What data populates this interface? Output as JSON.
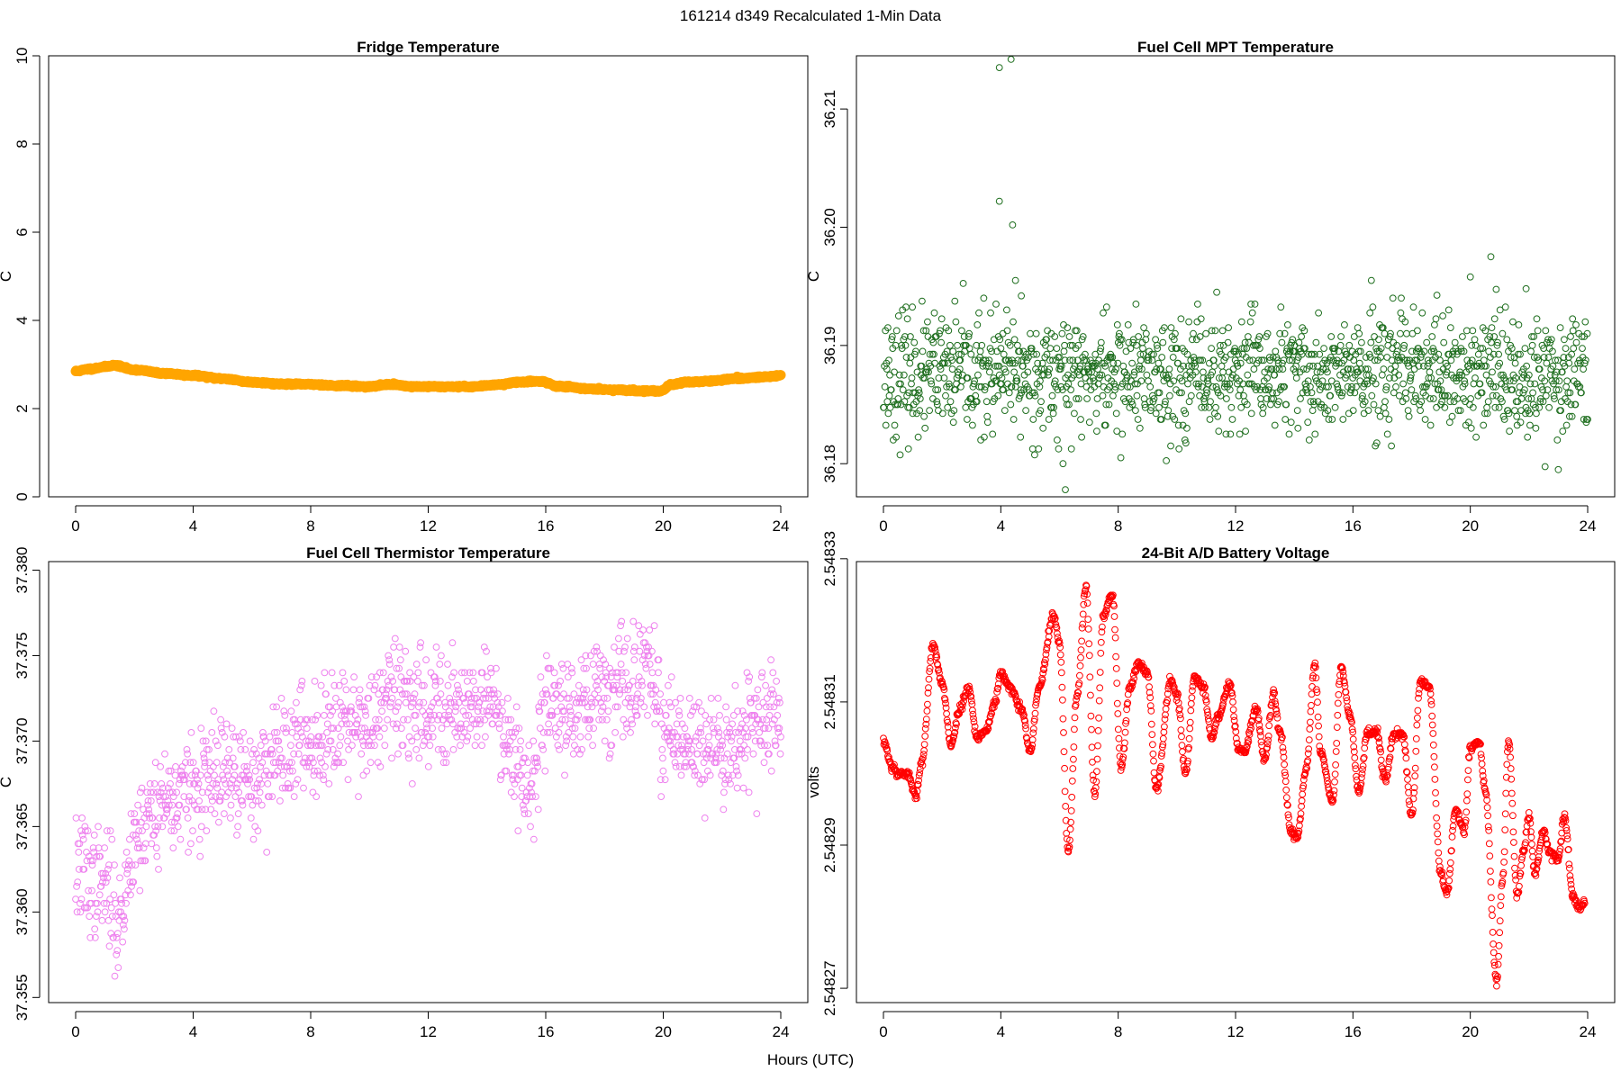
{
  "suptitle": "161214   d349   Recalculated 1-Min Data",
  "xlabel_shared": "Hours (UTC)",
  "chart_data": [
    {
      "type": "line",
      "title": "Fridge Temperature",
      "xlabel": "Hours (UTC)",
      "ylabel": "C",
      "color": "#FFA500",
      "xlim": [
        0,
        24
      ],
      "ylim": [
        0,
        10
      ],
      "x_ticks": [
        0,
        4,
        8,
        12,
        16,
        20,
        24
      ],
      "y_ticks": [
        0,
        2,
        4,
        6,
        8,
        10
      ],
      "y_tick_labels": [
        "0",
        "2",
        "4",
        "6",
        "8",
        "10"
      ],
      "series": [
        {
          "name": "Fridge Temperature",
          "x": [
            0,
            0.5,
            1.0,
            1.3,
            2.0,
            3.0,
            4.0,
            5.0,
            6.0,
            7.0,
            8.0,
            9.0,
            10.0,
            10.7,
            11.5,
            12.5,
            13.5,
            14.5,
            15.0,
            15.8,
            16.5,
            17.5,
            18.5,
            19.5,
            19.9,
            20.3,
            20.8,
            21.5,
            22.5,
            23.5,
            24.0
          ],
          "y": [
            2.85,
            2.9,
            2.95,
            2.98,
            2.88,
            2.8,
            2.75,
            2.68,
            2.6,
            2.56,
            2.55,
            2.52,
            2.5,
            2.55,
            2.5,
            2.5,
            2.5,
            2.55,
            2.6,
            2.62,
            2.5,
            2.45,
            2.42,
            2.4,
            2.4,
            2.55,
            2.6,
            2.62,
            2.68,
            2.72,
            2.75
          ]
        }
      ]
    },
    {
      "type": "scatter",
      "title": "Fuel Cell MPT Temperature",
      "xlabel": "Hours (UTC)",
      "ylabel": "C",
      "color": "#1E6E1E",
      "xlim": [
        0,
        24
      ],
      "ylim": [
        36.1772,
        36.2145
      ],
      "x_ticks": [
        0,
        4,
        8,
        12,
        16,
        20,
        24
      ],
      "y_ticks": [
        36.18,
        36.19,
        36.2,
        36.21
      ],
      "y_tick_labels": [
        "36.18",
        "36.19",
        "36.20",
        "36.21"
      ],
      "baseline": 36.1875,
      "spread": 0.0025,
      "outliers": [
        {
          "x": 3.95,
          "y": 36.2135
        },
        {
          "x": 4.35,
          "y": 36.2142
        },
        {
          "x": 3.95,
          "y": 36.2022
        },
        {
          "x": 4.4,
          "y": 36.2002
        },
        {
          "x": 4.5,
          "y": 36.1955
        },
        {
          "x": 4.7,
          "y": 36.1942
        },
        {
          "x": 6.2,
          "y": 36.1778
        },
        {
          "x": 20.0,
          "y": 36.1958
        },
        {
          "x": 20.7,
          "y": 36.1975
        },
        {
          "x": 21.9,
          "y": 36.1948
        }
      ]
    },
    {
      "type": "scatter",
      "title": "Fuel Cell Thermistor Temperature",
      "xlabel": "Hours (UTC)",
      "ylabel": "C",
      "color": "#EE82EE",
      "xlim": [
        0,
        24
      ],
      "ylim": [
        37.3547,
        37.3805
      ],
      "x_ticks": [
        0,
        4,
        8,
        12,
        16,
        20,
        24
      ],
      "y_ticks": [
        37.355,
        37.36,
        37.365,
        37.37,
        37.375,
        37.38
      ],
      "y_tick_labels": [
        "37.355",
        "37.360",
        "37.365",
        "37.370",
        "37.375",
        "37.380"
      ],
      "trend": {
        "x": [
          0,
          1,
          1.5,
          2,
          3,
          4,
          5,
          6,
          7,
          8,
          9,
          10,
          11,
          12,
          13,
          14,
          15,
          15.5,
          16,
          17,
          18,
          19,
          19.5,
          20,
          21,
          22,
          23,
          24
        ],
        "y": [
          37.3625,
          37.3615,
          37.3595,
          37.3645,
          37.3665,
          37.367,
          37.368,
          37.3675,
          37.3695,
          37.37,
          37.3715,
          37.371,
          37.3725,
          37.372,
          37.372,
          37.3725,
          37.3695,
          37.367,
          37.372,
          37.372,
          37.373,
          37.373,
          37.3745,
          37.3705,
          37.3695,
          37.3695,
          37.371,
          37.371
        ]
      },
      "spread": 0.0016
    },
    {
      "type": "line",
      "title": "24-Bit A/D Battery Voltage",
      "xlabel": "Hours (UTC)",
      "ylabel": "volts",
      "color": "#FF0000",
      "xlim": [
        0,
        24
      ],
      "ylim": [
        2.548268,
        2.5483296
      ],
      "x_ticks": [
        0,
        4,
        8,
        12,
        16,
        20,
        24
      ],
      "y_ticks": [
        2.54827,
        2.54829,
        2.54831,
        2.54833
      ],
      "y_tick_labels": [
        "2.54827",
        "2.54829",
        "2.54831",
        "2.54833"
      ],
      "marker": "circle",
      "series": [
        {
          "name": "Battery Voltage",
          "x": [
            0,
            0.3,
            0.5,
            0.8,
            1.1,
            1.3,
            1.7,
            2.0,
            2.3,
            2.6,
            2.9,
            3.2,
            3.5,
            3.8,
            4.0,
            4.3,
            4.7,
            5.0,
            5.3,
            5.8,
            6.0,
            6.3,
            6.6,
            6.9,
            7.2,
            7.5,
            7.8,
            8.1,
            8.4,
            8.7,
            9.0,
            9.3,
            9.8,
            10.0,
            10.3,
            10.6,
            10.9,
            11.2,
            11.4,
            11.8,
            12.1,
            12.3,
            12.7,
            13.0,
            13.3,
            13.5,
            13.9,
            14.1,
            14.4,
            14.7,
            14.9,
            15.3,
            15.6,
            15.9,
            16.2,
            16.5,
            16.8,
            17.1,
            17.4,
            17.7,
            18.0,
            18.3,
            18.6,
            19.0,
            19.2,
            19.5,
            19.8,
            20.0,
            20.3,
            20.5,
            20.9,
            21.1,
            21.3,
            21.6,
            21.8,
            22.0,
            22.2,
            22.5,
            22.7,
            23.0,
            23.2,
            23.5,
            23.7,
            23.9
          ],
          "y": [
            2.5483045,
            2.548301,
            2.5483,
            2.5483,
            2.548297,
            2.5483015,
            2.548318,
            2.5483125,
            2.548304,
            2.548309,
            2.548312,
            2.548305,
            2.548306,
            2.54831,
            2.548314,
            2.548312,
            2.548309,
            2.548303,
            2.548312,
            2.548322,
            2.548318,
            2.548289,
            2.548311,
            2.548326,
            2.548297,
            2.548322,
            2.548325,
            2.548301,
            2.548312,
            2.5483155,
            2.548314,
            2.548298,
            2.548313,
            2.548311,
            2.5483,
            2.5483135,
            2.548312,
            2.548305,
            2.548308,
            2.5483125,
            2.5483035,
            2.548303,
            2.548309,
            2.548302,
            2.548311,
            2.548306,
            2.548292,
            2.548291,
            2.5483005,
            2.548315,
            2.548303,
            2.548296,
            2.548315,
            2.548308,
            2.5482975,
            2.5483055,
            2.548306,
            2.548299,
            2.5483055,
            2.5483055,
            2.548294,
            2.548313,
            2.548312,
            2.548286,
            2.548283,
            2.548295,
            2.548292,
            2.5483035,
            2.5483045,
            2.548298,
            2.548271,
            2.548285,
            2.5483045,
            2.548283,
            2.548289,
            2.548294,
            2.548286,
            2.548292,
            2.548289,
            2.548288,
            2.548294,
            2.548283,
            2.548281,
            2.548282
          ]
        }
      ]
    }
  ]
}
